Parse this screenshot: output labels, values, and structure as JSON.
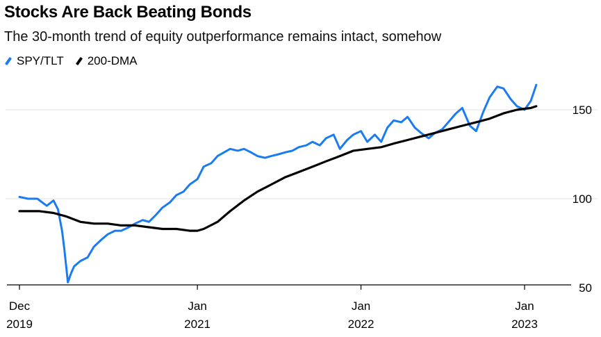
{
  "title": "Stocks Are Back Beating Bonds",
  "subtitle": "The 30-month trend of equity outperformance remains intact, somehow",
  "chart_data": {
    "type": "line",
    "title": "Stocks Are Back Beating Bonds",
    "subtitle": "The 30-month trend of equity outperformance remains intact, somehow",
    "xlabel": "",
    "ylabel": "",
    "ylim": [
      45,
      165
    ],
    "y_ticks": [
      50,
      100,
      150
    ],
    "y_axis_position": "right",
    "grid": "horizontal",
    "legend_position": "top-left",
    "x_ticks": [
      {
        "date": "2019-12-01",
        "line1": "Dec",
        "line2": "2019"
      },
      {
        "date": "2021-01-01",
        "line1": "Jan",
        "line2": "2021"
      },
      {
        "date": "2022-01-01",
        "line1": "Jan",
        "line2": "2022"
      },
      {
        "date": "2023-01-01",
        "line1": "Jan",
        "line2": "2023"
      }
    ],
    "series": [
      {
        "name": "SPY/TLT",
        "color": "#1a7cf0",
        "x": [
          "2019-12-01",
          "2019-12-20",
          "2020-01-10",
          "2020-01-31",
          "2020-02-15",
          "2020-02-25",
          "2020-03-05",
          "2020-03-10",
          "2020-03-18",
          "2020-03-25",
          "2020-04-01",
          "2020-04-15",
          "2020-05-01",
          "2020-05-15",
          "2020-06-01",
          "2020-06-15",
          "2020-07-01",
          "2020-07-15",
          "2020-08-01",
          "2020-08-15",
          "2020-09-01",
          "2020-09-15",
          "2020-10-01",
          "2020-10-15",
          "2020-11-01",
          "2020-11-15",
          "2020-12-01",
          "2020-12-15",
          "2021-01-01",
          "2021-01-15",
          "2021-02-01",
          "2021-02-15",
          "2021-03-01",
          "2021-03-15",
          "2021-04-01",
          "2021-04-15",
          "2021-05-01",
          "2021-05-15",
          "2021-06-01",
          "2021-06-15",
          "2021-07-01",
          "2021-07-15",
          "2021-08-01",
          "2021-08-15",
          "2021-09-01",
          "2021-09-15",
          "2021-10-01",
          "2021-10-15",
          "2021-11-01",
          "2021-11-15",
          "2021-12-01",
          "2021-12-15",
          "2022-01-01",
          "2022-01-15",
          "2022-02-01",
          "2022-02-15",
          "2022-03-01",
          "2022-03-15",
          "2022-04-01",
          "2022-04-15",
          "2022-05-01",
          "2022-05-15",
          "2022-06-01",
          "2022-06-15",
          "2022-07-01",
          "2022-07-15",
          "2022-08-01",
          "2022-08-15",
          "2022-09-01",
          "2022-09-15",
          "2022-10-01",
          "2022-10-15",
          "2022-11-01",
          "2022-11-15",
          "2022-12-01",
          "2022-12-15",
          "2023-01-01",
          "2023-01-15",
          "2023-01-27"
        ],
        "values": [
          101,
          100,
          100,
          96,
          99,
          94,
          82,
          72,
          53,
          58,
          62,
          65,
          67,
          73,
          77,
          80,
          82,
          82,
          84,
          86,
          88,
          87,
          91,
          95,
          98,
          102,
          104,
          108,
          111,
          118,
          120,
          124,
          126,
          128,
          127,
          128,
          126,
          124,
          123,
          124,
          125,
          126,
          127,
          129,
          130,
          132,
          130,
          134,
          136,
          128,
          133,
          136,
          138,
          132,
          136,
          132,
          140,
          144,
          143,
          146,
          140,
          137,
          134,
          137,
          139,
          143,
          148,
          151,
          141,
          138,
          149,
          157,
          163,
          162,
          156,
          152,
          150,
          155,
          164
        ]
      },
      {
        "name": "200-DMA",
        "color": "#000000",
        "x": [
          "2019-12-01",
          "2020-01-15",
          "2020-02-15",
          "2020-03-15",
          "2020-04-15",
          "2020-05-15",
          "2020-06-15",
          "2020-07-15",
          "2020-08-15",
          "2020-09-15",
          "2020-10-15",
          "2020-11-15",
          "2020-12-15",
          "2021-01-01",
          "2021-01-15",
          "2021-02-15",
          "2021-03-15",
          "2021-04-15",
          "2021-05-15",
          "2021-06-15",
          "2021-07-15",
          "2021-08-15",
          "2021-09-15",
          "2021-10-15",
          "2021-11-15",
          "2021-12-15",
          "2022-01-15",
          "2022-02-15",
          "2022-03-15",
          "2022-04-15",
          "2022-05-15",
          "2022-06-15",
          "2022-07-15",
          "2022-08-15",
          "2022-09-15",
          "2022-10-15",
          "2022-11-15",
          "2022-12-15",
          "2023-01-15",
          "2023-01-27"
        ],
        "values": [
          93,
          93,
          92,
          90,
          87,
          86,
          86,
          85,
          85,
          84,
          83,
          83,
          82,
          82,
          83,
          87,
          93,
          99,
          104,
          108,
          112,
          115,
          118,
          121,
          124,
          127,
          128,
          129,
          131,
          133,
          135,
          137,
          139,
          141,
          143,
          145,
          148,
          150,
          151,
          152
        ]
      }
    ]
  }
}
